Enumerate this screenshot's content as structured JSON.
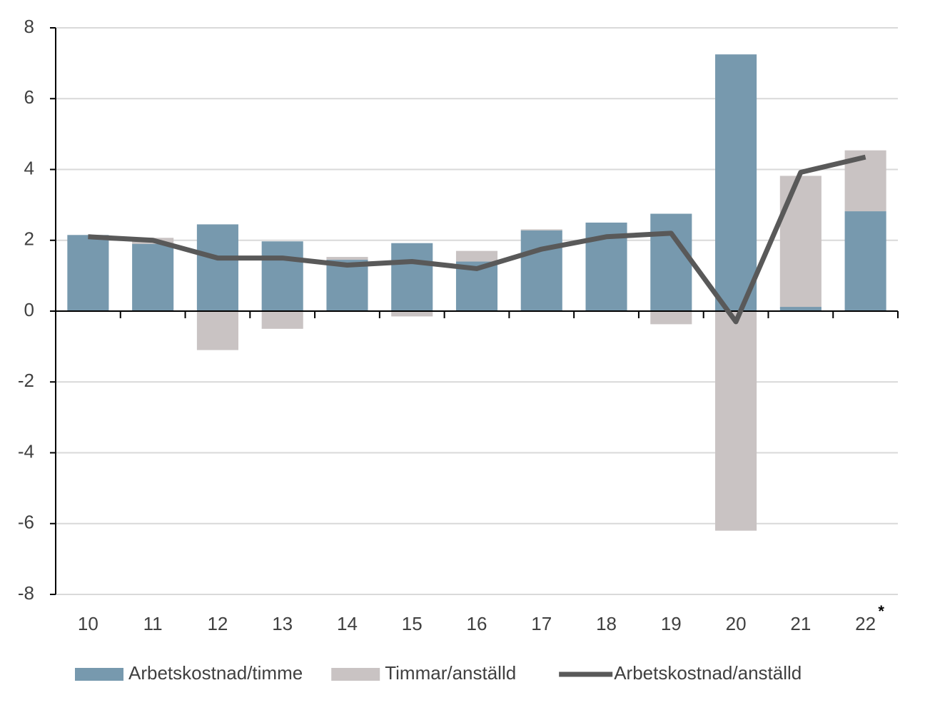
{
  "chart_data": {
    "type": "bar",
    "categories": [
      "10",
      "11",
      "12",
      "13",
      "14",
      "15",
      "16",
      "17",
      "18",
      "19",
      "20",
      "21",
      "22"
    ],
    "annotation": "*",
    "series": [
      {
        "name": "Arbetskostnad/timme",
        "type": "bar",
        "color": "#7799ae",
        "values": [
          2.15,
          1.9,
          2.45,
          1.97,
          1.45,
          1.92,
          1.4,
          2.28,
          2.5,
          2.75,
          7.25,
          0.12,
          2.82
        ]
      },
      {
        "name": "Timmar/anställd",
        "type": "bar",
        "color": "#c9c3c3",
        "values": [
          0,
          0.17,
          -1.1,
          -0.5,
          0.08,
          -0.15,
          0.3,
          0.03,
          0,
          -0.37,
          -6.2,
          3.7,
          1.72
        ]
      },
      {
        "name": "Arbetskostnad/anställd",
        "type": "line",
        "color": "#595959",
        "values": [
          2.1,
          2.0,
          1.5,
          1.5,
          1.3,
          1.4,
          1.2,
          1.75,
          2.1,
          2.2,
          -0.3,
          3.92,
          4.35
        ]
      }
    ],
    "stacked": true,
    "ylim": [
      -8,
      8
    ],
    "yticks": [
      -8,
      -6,
      -4,
      -2,
      0,
      2,
      4,
      6,
      8
    ],
    "grid": true,
    "legend": "bottom"
  }
}
